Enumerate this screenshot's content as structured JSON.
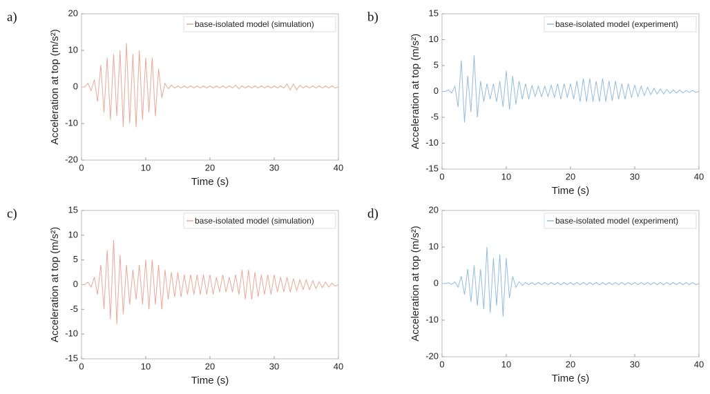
{
  "chart_data": [
    {
      "type": "line",
      "label": "a)",
      "ylabel": "Acceleration at top (m/s²)",
      "xlabel": "Time (s)",
      "x": [
        0,
        0.5,
        1,
        1.5,
        2,
        2.5,
        3,
        3.5,
        4,
        4.5,
        5,
        5.5,
        6,
        6.5,
        7,
        7.5,
        8,
        8.5,
        9,
        9.5,
        10,
        10.5,
        11,
        11.5,
        12,
        12.5,
        13,
        13.5,
        14,
        14.5,
        15,
        15.5,
        16,
        16.5,
        17,
        17.5,
        18,
        18.5,
        19,
        19.5,
        20,
        20.5,
        21,
        21.5,
        22,
        22.5,
        23,
        23.5,
        24,
        24.5,
        25,
        25.5,
        26,
        26.5,
        27,
        27.5,
        28,
        28.5,
        29,
        29.5,
        30,
        30.5,
        31,
        31.5,
        32,
        32.5,
        33,
        33.5,
        34,
        34.5,
        35,
        35.5,
        36,
        36.5,
        37,
        37.5,
        38,
        38.5,
        39,
        39.5,
        40
      ],
      "series": [
        {
          "name": "base-isolated model (simulation)",
          "color": "#e9a896",
          "values": [
            0,
            0,
            1,
            -1,
            2,
            -4,
            6,
            -7,
            8,
            -9,
            9,
            -8,
            10,
            -11,
            12,
            -10,
            9,
            -11,
            10,
            -9,
            8,
            -7,
            8,
            -8,
            5,
            -3,
            1,
            -0.5,
            0.5,
            -0.3,
            0.3,
            -0.3,
            0.3,
            -0.3,
            0.3,
            -0.3,
            0.3,
            -0.3,
            0.3,
            -0.3,
            0.3,
            -0.3,
            0.3,
            -0.3,
            0.3,
            -0.3,
            0.3,
            -0.3,
            0.5,
            -0.5,
            0.3,
            -0.3,
            0.3,
            -0.3,
            0.3,
            -0.3,
            0.3,
            -0.3,
            0.3,
            -0.3,
            0.3,
            -0.3,
            0.3,
            -0.3,
            0.8,
            -0.8,
            0.8,
            -0.8,
            0.5,
            -0.3,
            0.3,
            -0.3,
            0.3,
            -0.3,
            0.3,
            -0.3,
            0.3,
            -0.3,
            0.3,
            -0.3,
            0
          ]
        }
      ],
      "xlim": [
        0,
        40
      ],
      "xticks": [
        0,
        10,
        20,
        30,
        40
      ],
      "ylim": [
        -20,
        20
      ],
      "yticks": [
        -20,
        -10,
        0,
        10,
        20
      ]
    },
    {
      "type": "line",
      "label": "b)",
      "ylabel": "Acceleration at top (m/s²)",
      "xlabel": "Time (s)",
      "x": [
        0,
        0.5,
        1,
        1.5,
        2,
        2.5,
        3,
        3.5,
        4,
        4.5,
        5,
        5.5,
        6,
        6.5,
        7,
        7.5,
        8,
        8.5,
        9,
        9.5,
        10,
        10.5,
        11,
        11.5,
        12,
        12.5,
        13,
        13.5,
        14,
        14.5,
        15,
        15.5,
        16,
        16.5,
        17,
        17.5,
        18,
        18.5,
        19,
        19.5,
        20,
        20.5,
        21,
        21.5,
        22,
        22.5,
        23,
        23.5,
        24,
        24.5,
        25,
        25.5,
        26,
        26.5,
        27,
        27.5,
        28,
        28.5,
        29,
        29.5,
        30,
        30.5,
        31,
        31.5,
        32,
        32.5,
        33,
        33.5,
        34,
        34.5,
        35,
        35.5,
        36,
        36.5,
        37,
        37.5,
        38,
        38.5,
        39,
        39.5,
        40
      ],
      "series": [
        {
          "name": "base-isolated model (experiment)",
          "color": "#92bcdc",
          "values": [
            0,
            0,
            0.3,
            -0.3,
            1,
            -3,
            6,
            -6,
            3,
            -4,
            7,
            -5,
            2,
            -2,
            1.5,
            -1.5,
            1.5,
            -2,
            2,
            -3,
            4,
            -3.5,
            3,
            -2.5,
            2,
            -1.5,
            1.5,
            -1.5,
            1.2,
            -1,
            1,
            -1,
            1,
            -1,
            1.2,
            -1.2,
            1.5,
            -1.5,
            1.5,
            -1.2,
            1.5,
            -1.5,
            2,
            -2,
            2.5,
            -2,
            2.5,
            -2,
            2,
            -2,
            2.5,
            -2,
            2,
            -1.8,
            2,
            -1.5,
            1.5,
            -1.5,
            1.5,
            -1.2,
            1.2,
            -1,
            1,
            -0.8,
            0.8,
            -0.6,
            0.6,
            -0.5,
            0.5,
            -0.5,
            0.4,
            -0.4,
            0.3,
            -0.3,
            0.3,
            -0.3,
            0.2,
            -0.2,
            0.2,
            -0.2,
            0
          ]
        }
      ],
      "xlim": [
        0,
        40
      ],
      "xticks": [
        0,
        10,
        20,
        30,
        40
      ],
      "ylim": [
        -15,
        15
      ],
      "yticks": [
        -15,
        -10,
        -5,
        0,
        5,
        10,
        15
      ]
    },
    {
      "type": "line",
      "label": "c)",
      "ylabel": "Acceleration at top (m/s²)",
      "xlabel": "Time (s)",
      "x": [
        0,
        0.5,
        1,
        1.5,
        2,
        2.5,
        3,
        3.5,
        4,
        4.5,
        5,
        5.5,
        6,
        6.5,
        7,
        7.5,
        8,
        8.5,
        9,
        9.5,
        10,
        10.5,
        11,
        11.5,
        12,
        12.5,
        13,
        13.5,
        14,
        14.5,
        15,
        15.5,
        16,
        16.5,
        17,
        17.5,
        18,
        18.5,
        19,
        19.5,
        20,
        20.5,
        21,
        21.5,
        22,
        22.5,
        23,
        23.5,
        24,
        24.5,
        25,
        25.5,
        26,
        26.5,
        27,
        27.5,
        28,
        28.5,
        29,
        29.5,
        30,
        30.5,
        31,
        31.5,
        32,
        32.5,
        33,
        33.5,
        34,
        34.5,
        35,
        35.5,
        36,
        36.5,
        37,
        37.5,
        38,
        38.5,
        39,
        39.5,
        40
      ],
      "series": [
        {
          "name": "base-isolated model (simulation)",
          "color": "#e9a896",
          "values": [
            0,
            0,
            0.5,
            -0.5,
            1.5,
            -2,
            4,
            -5,
            7,
            -7,
            9,
            -8,
            6,
            -6,
            4,
            -4,
            3,
            -3,
            4,
            -4,
            5,
            -5,
            5,
            -4,
            4,
            -5,
            3,
            -3,
            2.5,
            -2.5,
            2.5,
            -2.5,
            2,
            -2,
            2,
            -2,
            2,
            -2,
            2,
            -2,
            2,
            -2,
            1.5,
            -1.5,
            2,
            -1.5,
            1.5,
            -1.5,
            2,
            -2,
            3,
            -3,
            3,
            -3,
            2.5,
            -2.5,
            2,
            -2,
            2,
            -2,
            2,
            -1.5,
            1.5,
            -1.5,
            1.5,
            -1.5,
            1.2,
            -1.2,
            1,
            -1,
            1,
            -1,
            0.8,
            -0.8,
            0.6,
            -0.6,
            0.5,
            -0.5,
            0.3,
            -0.3,
            0
          ]
        }
      ],
      "xlim": [
        0,
        40
      ],
      "xticks": [
        0,
        10,
        20,
        30,
        40
      ],
      "ylim": [
        -15,
        15
      ],
      "yticks": [
        -15,
        -10,
        -5,
        0,
        5,
        10,
        15
      ]
    },
    {
      "type": "line",
      "label": "d)",
      "ylabel": "Acceleration at top (m/s²)",
      "xlabel": "Time (s)",
      "x": [
        0,
        0.5,
        1,
        1.5,
        2,
        2.5,
        3,
        3.5,
        4,
        4.5,
        5,
        5.5,
        6,
        6.5,
        7,
        7.5,
        8,
        8.5,
        9,
        9.5,
        10,
        10.5,
        11,
        11.5,
        12,
        12.5,
        13,
        13.5,
        14,
        14.5,
        15,
        15.5,
        16,
        16.5,
        17,
        17.5,
        18,
        18.5,
        19,
        19.5,
        20,
        20.5,
        21,
        21.5,
        22,
        22.5,
        23,
        23.5,
        24,
        24.5,
        25,
        25.5,
        26,
        26.5,
        27,
        27.5,
        28,
        28.5,
        29,
        29.5,
        30,
        30.5,
        31,
        31.5,
        32,
        32.5,
        33,
        33.5,
        34,
        34.5,
        35,
        35.5,
        36,
        36.5,
        37,
        37.5,
        38,
        38.5,
        39,
        39.5,
        40
      ],
      "series": [
        {
          "name": "base-isolated model (experiment)",
          "color": "#92bcdc",
          "values": [
            0,
            0,
            0.2,
            -0.2,
            0.5,
            -1,
            2,
            -3,
            4,
            -5,
            5,
            -6,
            4,
            -7,
            10,
            -8,
            7,
            -6,
            8,
            -9,
            7,
            -4,
            2,
            -1,
            0.5,
            -0.5,
            0.3,
            -0.3,
            0.3,
            -0.3,
            0.3,
            -0.3,
            0.3,
            -0.3,
            0.3,
            -0.3,
            0.3,
            -0.3,
            0.3,
            -0.3,
            0.3,
            -0.3,
            0.3,
            -0.3,
            0.3,
            -0.3,
            0.3,
            -0.3,
            0.3,
            -0.3,
            0.3,
            -0.3,
            0.3,
            -0.3,
            0.3,
            -0.3,
            0.3,
            -0.3,
            0.3,
            -0.3,
            0.3,
            -0.3,
            0.3,
            -0.3,
            0.3,
            -0.3,
            0.3,
            -0.3,
            0.3,
            -0.3,
            0.3,
            -0.3,
            0.3,
            -0.3,
            0.3,
            -0.3,
            0.3,
            -0.3,
            0.3,
            -0.3,
            0
          ]
        }
      ],
      "xlim": [
        0,
        40
      ],
      "xticks": [
        0,
        10,
        20,
        30,
        40
      ],
      "ylim": [
        -20,
        20
      ],
      "yticks": [
        -20,
        -10,
        0,
        10,
        20
      ]
    }
  ]
}
